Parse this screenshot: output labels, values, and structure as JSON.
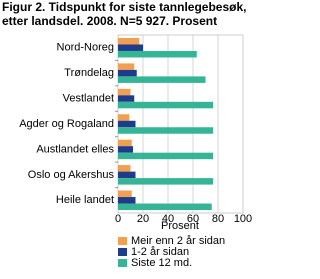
{
  "chart_data": {
    "type": "hbar",
    "title": [
      "Figur 2. Tidspunkt for siste tannlegebesøk,",
      "etter landsdel. 2008. N=5 927. Prosent"
    ],
    "x_label": "Prosent",
    "categories": [
      "Nord-Noreg",
      "Trøndelag",
      "Vestlandet",
      "Agder og Rogaland",
      "Austlandet elles",
      "Oslo og Akershus",
      "Heile landet"
    ],
    "series": [
      {
        "name": "Meir enn 2 år sidan",
        "color": "#f0a050",
        "values": [
          17,
          13,
          10,
          9,
          11,
          10,
          11
        ]
      },
      {
        "name": "1-2 år sidan",
        "color": "#1f3c8c",
        "values": [
          20,
          15,
          13,
          14,
          12,
          14,
          14
        ]
      },
      {
        "name": "Siste 12 md.",
        "color": "#35b596",
        "values": [
          63,
          70,
          76,
          76,
          76,
          76,
          75
        ]
      }
    ],
    "xlim": [
      0,
      100
    ],
    "xticks": [
      0,
      20,
      40,
      60,
      80,
      100
    ],
    "grid": true
  }
}
